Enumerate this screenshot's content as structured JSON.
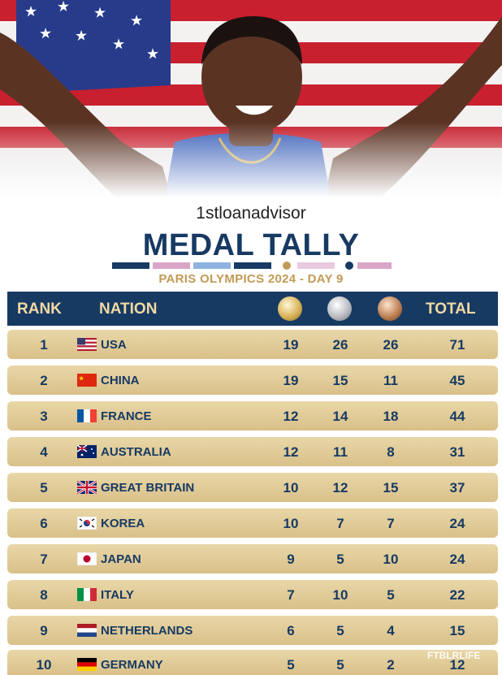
{
  "watermark": "1stloanadvisor",
  "title": "MEDAL TALLY",
  "subtitle": "PARIS OLYMPICS 2024 - DAY 9",
  "headers": {
    "rank": "RANK",
    "nation": "NATION",
    "total": "TOTAL",
    "gold_icon": "gold-medal-icon",
    "silver_icon": "silver-medal-icon",
    "bronze_icon": "bronze-medal-icon"
  },
  "rows": [
    {
      "rank": "1",
      "nation": "USA",
      "flag": "usa-flag-icon",
      "gold": "19",
      "silver": "26",
      "bronze": "26",
      "total": "71"
    },
    {
      "rank": "2",
      "nation": "CHINA",
      "flag": "china-flag-icon",
      "gold": "19",
      "silver": "15",
      "bronze": "11",
      "total": "45"
    },
    {
      "rank": "3",
      "nation": "FRANCE",
      "flag": "france-flag-icon",
      "gold": "12",
      "silver": "14",
      "bronze": "18",
      "total": "44"
    },
    {
      "rank": "4",
      "nation": "AUSTRALIA",
      "flag": "australia-flag-icon",
      "gold": "12",
      "silver": "11",
      "bronze": "8",
      "total": "31"
    },
    {
      "rank": "5",
      "nation": "GREAT BRITAIN",
      "flag": "uk-flag-icon",
      "gold": "10",
      "silver": "12",
      "bronze": "15",
      "total": "37"
    },
    {
      "rank": "6",
      "nation": "KOREA",
      "flag": "korea-flag-icon",
      "gold": "10",
      "silver": "7",
      "bronze": "7",
      "total": "24"
    },
    {
      "rank": "7",
      "nation": "JAPAN",
      "flag": "japan-flag-icon",
      "gold": "9",
      "silver": "5",
      "bronze": "10",
      "total": "24"
    },
    {
      "rank": "8",
      "nation": "ITALY",
      "flag": "italy-flag-icon",
      "gold": "7",
      "silver": "10",
      "bronze": "5",
      "total": "22"
    },
    {
      "rank": "9",
      "nation": "NETHERLANDS",
      "flag": "netherlands-flag-icon",
      "gold": "6",
      "silver": "5",
      "bronze": "4",
      "total": "15"
    },
    {
      "rank": "10",
      "nation": "GERMANY",
      "flag": "germany-flag-icon",
      "gold": "5",
      "silver": "5",
      "bronze": "2",
      "total": "12"
    }
  ],
  "bottom_watermark": "FTBLRLIFE",
  "colors": {
    "navy": "#173a63",
    "gold_text": "#c29a55",
    "row_bg": "#e2cb98"
  }
}
